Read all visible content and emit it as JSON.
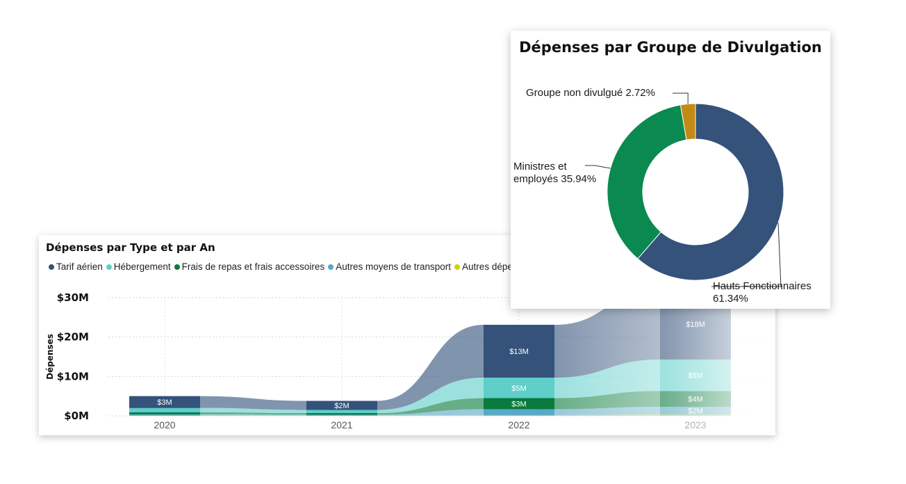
{
  "chart_data": [
    {
      "type": "area",
      "title": "Dépenses par Type et par An",
      "xlabel": "",
      "ylabel": "Dépenses",
      "categories": [
        "2020",
        "2021",
        "2022",
        "2023"
      ],
      "yticks": [
        "$0M",
        "$10M",
        "$20M",
        "$30M"
      ],
      "ylim": [
        0,
        30
      ],
      "legend_position": "top-left",
      "series": [
        {
          "name": "Autres dépenses",
          "values": [
            0.1,
            0.1,
            0.2,
            0.3
          ],
          "color": "#c9d300",
          "labels": [
            "",
            "",
            "",
            ""
          ]
        },
        {
          "name": "Autres moyens de transport",
          "values": [
            0.3,
            0.2,
            1.5,
            2.0
          ],
          "color": "#5aa8c7",
          "labels": [
            "",
            "",
            "",
            "$2M"
          ]
        },
        {
          "name": "Frais de repas et frais accessoires",
          "values": [
            0.5,
            0.4,
            2.8,
            4.0
          ],
          "color": "#0a7a3e",
          "labels": [
            "",
            "",
            "$3M",
            "$4M"
          ]
        },
        {
          "name": "Hébergement",
          "values": [
            1.1,
            0.8,
            5.2,
            8.0
          ],
          "color": "#5fcfc9",
          "labels": [
            "",
            "",
            "$5M",
            "$8M"
          ]
        },
        {
          "name": "Tarif aérien",
          "values": [
            3.0,
            2.3,
            13.4,
            18.0
          ],
          "color": "#34527a",
          "labels": [
            "$3M",
            "$2M",
            "$13M",
            "$18M"
          ]
        }
      ]
    },
    {
      "type": "pie",
      "title": "Dépenses par Groupe de Divulgation",
      "donut": true,
      "slices": [
        {
          "name": "Hauts Fonctionnaires",
          "value": 61.34,
          "label": "Hauts Fonctionnaires 61.34%",
          "lines": [
            "Hauts Fonctionnaires",
            "61.34%"
          ],
          "color": "#34527a"
        },
        {
          "name": "Ministres et employés",
          "value": 35.94,
          "label": "Ministres et employés 35.94%",
          "lines": [
            "Ministres et",
            "employés 35.94%"
          ],
          "color": "#0a8a50"
        },
        {
          "name": "Groupe non divulgué",
          "value": 2.72,
          "label": "Groupe non divulgué 2.72%",
          "lines": [
            "Groupe non divulgué 2.72%"
          ],
          "color": "#c38a16"
        }
      ]
    }
  ]
}
